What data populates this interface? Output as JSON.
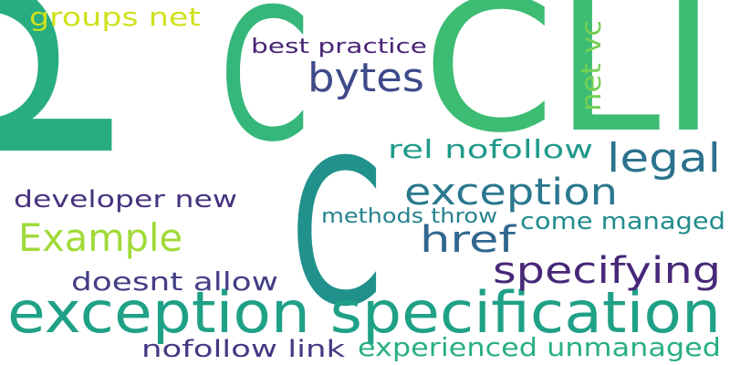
{
  "words": [
    {
      "text": "p",
      "color": "#27ad81"
    },
    {
      "text": "C",
      "color": "#35b779"
    },
    {
      "text": "CLI",
      "color": "#3dbc74"
    },
    {
      "text": "C",
      "color": "#21918c"
    },
    {
      "text": "exception specification",
      "color": "#1fa187"
    },
    {
      "text": "bytes",
      "color": "#3e4a89"
    },
    {
      "text": "legal",
      "color": "#2c728e"
    },
    {
      "text": "exception",
      "color": "#2a788e"
    },
    {
      "text": "href",
      "color": "#31668e"
    },
    {
      "text": "specifying",
      "color": "#482878"
    },
    {
      "text": "Example",
      "color": "#a0da39"
    },
    {
      "text": "groups net",
      "color": "#d0e11c"
    },
    {
      "text": "best practice",
      "color": "#482475"
    },
    {
      "text": "net vc",
      "color": "#75d054"
    },
    {
      "text": "rel nofollow",
      "color": "#1f9a8a"
    },
    {
      "text": "developer new",
      "color": "#46327e"
    },
    {
      "text": "methods throw",
      "color": "#26828e"
    },
    {
      "text": "come managed",
      "color": "#228c8d"
    },
    {
      "text": "doesnt allow",
      "color": "#433e85"
    },
    {
      "text": "nofollow link",
      "color": "#443983"
    },
    {
      "text": "experienced unmanaged",
      "color": "#29af7f"
    }
  ]
}
